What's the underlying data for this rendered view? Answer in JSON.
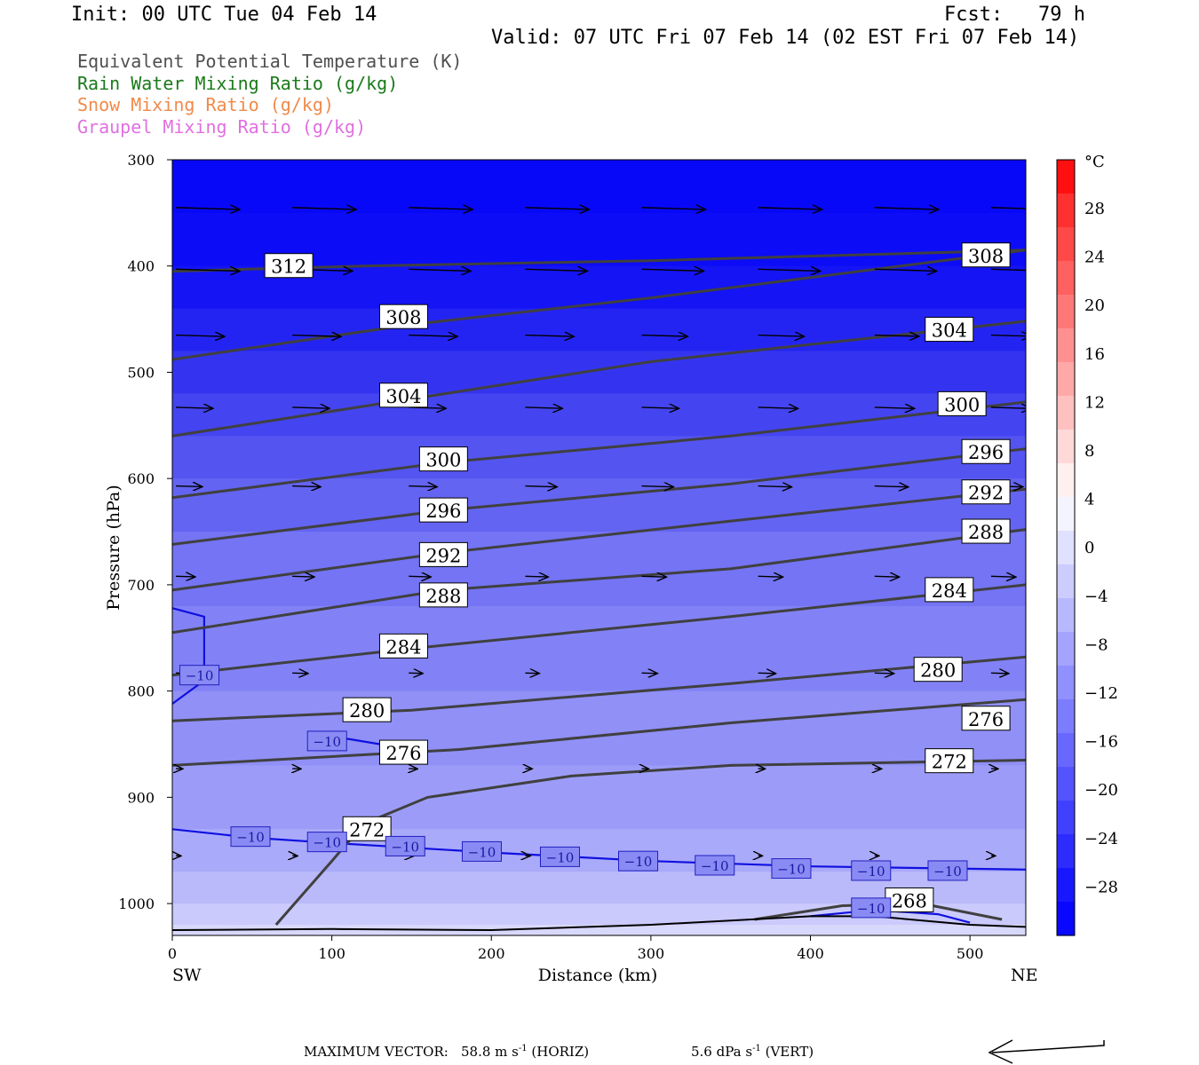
{
  "header": {
    "init": "Init: 00 UTC Tue 04 Feb 14",
    "fcst": "Fcst:   79 h",
    "valid": "Valid: 07 UTC Fri 07 Feb 14 (02 EST Fri 07 Feb 14)"
  },
  "legend": [
    {
      "label": "Equivalent Potential Temperature (K)",
      "color": "#505050"
    },
    {
      "label": "Rain Water Mixing Ratio (g/kg)",
      "color": "#1a7a1a"
    },
    {
      "label": "Snow Mixing Ratio (g/kg)",
      "color": "#f08a4b"
    },
    {
      "label": "Graupel Mixing Ratio (g/kg)",
      "color": "#e070e0"
    }
  ],
  "chart_data": {
    "type": "heatmap",
    "xlabel": "Distance (km)",
    "ylabel": "Pressure (hPa)",
    "xlim": [
      0,
      535
    ],
    "ylim": [
      1030,
      300
    ],
    "x_ticks": [
      0,
      100,
      200,
      300,
      400,
      500
    ],
    "y_ticks": [
      300,
      400,
      500,
      600,
      700,
      800,
      900,
      1000
    ],
    "x_end_labels": {
      "left": "SW",
      "right": "NE"
    },
    "colorbar": {
      "unit": "°C",
      "ticks": [
        "28",
        "24",
        "20",
        "16",
        "12",
        "8",
        "4",
        "0",
        "−4",
        "−8",
        "−12",
        "−16",
        "−20",
        "−24",
        "−28"
      ],
      "colors": [
        "#ff1010",
        "#ff3030",
        "#ff4848",
        "#ff6060",
        "#ff7878",
        "#ff9090",
        "#ffa8a8",
        "#ffc0c0",
        "#ffd8d8",
        "#fff0f0",
        "#f4f4ff",
        "#e0e0ff",
        "#ccccff",
        "#b8b8ff",
        "#a4a4ff",
        "#9090ff",
        "#7c7cff",
        "#6868ff",
        "#5454ff",
        "#4040ff",
        "#2c2cff",
        "#1818ff",
        "#0808ff"
      ]
    },
    "temperature_bands": [
      {
        "p": 300,
        "color": "#0808f8"
      },
      {
        "p": 350,
        "color": "#0c0cf6"
      },
      {
        "p": 400,
        "color": "#1414f4"
      },
      {
        "p": 440,
        "color": "#2424f2"
      },
      {
        "p": 480,
        "color": "#3434f0"
      },
      {
        "p": 520,
        "color": "#4444f0"
      },
      {
        "p": 560,
        "color": "#5454f0"
      },
      {
        "p": 600,
        "color": "#6464f2"
      },
      {
        "p": 650,
        "color": "#7474f4"
      },
      {
        "p": 720,
        "color": "#8282f6"
      },
      {
        "p": 800,
        "color": "#9090f6"
      },
      {
        "p": 870,
        "color": "#9c9cf8"
      },
      {
        "p": 930,
        "color": "#aaaafa"
      },
      {
        "p": 970,
        "color": "#babafa"
      },
      {
        "p": 1000,
        "color": "#cacafc"
      },
      {
        "p": 1020,
        "color": "#d8d8fc"
      }
    ],
    "theta_e_contours": [
      {
        "label": "312",
        "points": [
          [
            0,
            405
          ],
          [
            120,
            400
          ],
          [
            300,
            395
          ],
          [
            535,
            385
          ]
        ]
      },
      {
        "label": "308",
        "points": [
          [
            0,
            488
          ],
          [
            150,
            455
          ],
          [
            300,
            430
          ],
          [
            535,
            385
          ]
        ]
      },
      {
        "label": "304",
        "points": [
          [
            0,
            560
          ],
          [
            150,
            525
          ],
          [
            300,
            490
          ],
          [
            535,
            452
          ]
        ]
      },
      {
        "label": "300",
        "points": [
          [
            0,
            618
          ],
          [
            170,
            585
          ],
          [
            350,
            560
          ],
          [
            535,
            528
          ]
        ]
      },
      {
        "label": "296",
        "points": [
          [
            0,
            662
          ],
          [
            170,
            630
          ],
          [
            350,
            605
          ],
          [
            535,
            572
          ]
        ]
      },
      {
        "label": "292",
        "points": [
          [
            0,
            705
          ],
          [
            170,
            670
          ],
          [
            350,
            640
          ],
          [
            535,
            610
          ]
        ]
      },
      {
        "label": "288",
        "points": [
          [
            0,
            745
          ],
          [
            170,
            705
          ],
          [
            350,
            685
          ],
          [
            535,
            648
          ]
        ]
      },
      {
        "label": "284",
        "points": [
          [
            0,
            785
          ],
          [
            150,
            760
          ],
          [
            350,
            730
          ],
          [
            535,
            700
          ]
        ]
      },
      {
        "label": "280",
        "points": [
          [
            0,
            828
          ],
          [
            150,
            818
          ],
          [
            350,
            793
          ],
          [
            535,
            768
          ]
        ]
      },
      {
        "label": "276",
        "points": [
          [
            0,
            870
          ],
          [
            180,
            855
          ],
          [
            350,
            830
          ],
          [
            535,
            808
          ]
        ]
      },
      {
        "label": "272",
        "points": [
          [
            65,
            1020
          ],
          [
            100,
            960
          ],
          [
            120,
            925
          ],
          [
            160,
            900
          ],
          [
            250,
            880
          ],
          [
            350,
            870
          ],
          [
            535,
            865
          ]
        ]
      },
      {
        "label": "268",
        "points": [
          [
            365,
            1015
          ],
          [
            420,
            1002
          ],
          [
            470,
            1000
          ],
          [
            520,
            1015
          ]
        ]
      }
    ],
    "theta_e_labels": [
      {
        "label": "312",
        "x": 73,
        "p": 400
      },
      {
        "label": "308",
        "x": 145,
        "p": 448
      },
      {
        "label": "304",
        "x": 145,
        "p": 522
      },
      {
        "label": "300",
        "x": 170,
        "p": 582
      },
      {
        "label": "296",
        "x": 170,
        "p": 630
      },
      {
        "label": "292",
        "x": 170,
        "p": 672
      },
      {
        "label": "288",
        "x": 170,
        "p": 710
      },
      {
        "label": "284",
        "x": 145,
        "p": 758
      },
      {
        "label": "280",
        "x": 122,
        "p": 818
      },
      {
        "label": "276",
        "x": 145,
        "p": 858
      },
      {
        "label": "272",
        "x": 122,
        "p": 930
      },
      {
        "label": "308",
        "x": 510,
        "p": 390
      },
      {
        "label": "304",
        "x": 487,
        "p": 460
      },
      {
        "label": "300",
        "x": 495,
        "p": 530
      },
      {
        "label": "296",
        "x": 510,
        "p": 575
      },
      {
        "label": "292",
        "x": 510,
        "p": 613
      },
      {
        "label": "288",
        "x": 510,
        "p": 650
      },
      {
        "label": "284",
        "x": 487,
        "p": 705
      },
      {
        "label": "280",
        "x": 480,
        "p": 780
      },
      {
        "label": "276",
        "x": 510,
        "p": 826
      },
      {
        "label": "272",
        "x": 487,
        "p": 866
      },
      {
        "label": "268",
        "x": 462,
        "p": 997
      }
    ],
    "isotherm_minus10": [
      {
        "points": [
          [
            0,
            930
          ],
          [
            50,
            938
          ],
          [
            100,
            943
          ],
          [
            200,
            952
          ],
          [
            300,
            960
          ],
          [
            400,
            965
          ],
          [
            535,
            968
          ]
        ]
      },
      {
        "points": [
          [
            85,
            846
          ],
          [
            110,
            845
          ],
          [
            130,
            850
          ]
        ]
      },
      {
        "points": [
          [
            0,
            722
          ],
          [
            20,
            730
          ],
          [
            20,
            790
          ],
          [
            0,
            812
          ]
        ]
      },
      {
        "points": [
          [
            400,
            1012
          ],
          [
            440,
            1006
          ],
          [
            480,
            1010
          ],
          [
            500,
            1018
          ]
        ]
      }
    ],
    "isotherm_labels": [
      {
        "label": "−10",
        "x": 17,
        "p": 785
      },
      {
        "label": "−10",
        "x": 97,
        "p": 847
      },
      {
        "label": "−10",
        "x": 49,
        "p": 937
      },
      {
        "label": "−10",
        "x": 97,
        "p": 942
      },
      {
        "label": "−10",
        "x": 146,
        "p": 946
      },
      {
        "label": "−10",
        "x": 194,
        "p": 951
      },
      {
        "label": "−10",
        "x": 243,
        "p": 956
      },
      {
        "label": "−10",
        "x": 292,
        "p": 960
      },
      {
        "label": "−10",
        "x": 340,
        "p": 964
      },
      {
        "label": "−10",
        "x": 388,
        "p": 967
      },
      {
        "label": "−10",
        "x": 438,
        "p": 969
      },
      {
        "label": "−10",
        "x": 486,
        "p": 969
      },
      {
        "label": "−10",
        "x": 438,
        "p": 1004
      }
    ],
    "wind_rows": [
      {
        "p": 345,
        "vectors": [
          [
            0,
            72
          ],
          [
            73,
            72
          ],
          [
            146,
            72
          ],
          [
            219,
            72
          ],
          [
            292,
            72
          ],
          [
            365,
            72
          ],
          [
            438,
            72
          ],
          [
            511,
            72
          ]
        ]
      },
      {
        "p": 403,
        "vectors": [
          [
            0,
            72
          ],
          [
            73,
            68
          ],
          [
            146,
            70
          ],
          [
            219,
            70
          ],
          [
            292,
            70
          ],
          [
            365,
            70
          ],
          [
            438,
            70
          ],
          [
            511,
            70
          ]
        ]
      },
      {
        "p": 465,
        "vectors": [
          [
            0,
            55
          ],
          [
            73,
            55
          ],
          [
            146,
            55
          ],
          [
            219,
            55
          ],
          [
            292,
            52
          ],
          [
            365,
            52
          ],
          [
            438,
            50
          ],
          [
            511,
            45
          ]
        ]
      },
      {
        "p": 533,
        "vectors": [
          [
            0,
            42
          ],
          [
            73,
            42
          ],
          [
            146,
            42
          ],
          [
            219,
            42
          ],
          [
            292,
            42
          ],
          [
            365,
            45
          ],
          [
            438,
            45
          ],
          [
            511,
            45
          ]
        ]
      },
      {
        "p": 607,
        "vectors": [
          [
            0,
            30
          ],
          [
            73,
            32
          ],
          [
            146,
            32
          ],
          [
            219,
            36
          ],
          [
            292,
            36
          ],
          [
            365,
            38
          ],
          [
            438,
            38
          ],
          [
            511,
            36
          ]
        ]
      },
      {
        "p": 692,
        "vectors": [
          [
            0,
            22
          ],
          [
            73,
            25
          ],
          [
            146,
            25
          ],
          [
            219,
            26
          ],
          [
            292,
            28
          ],
          [
            365,
            28
          ],
          [
            438,
            28
          ],
          [
            511,
            28
          ]
        ]
      },
      {
        "p": 783,
        "vectors": [
          [
            0,
            20
          ],
          [
            73,
            18
          ],
          [
            146,
            16
          ],
          [
            219,
            16
          ],
          [
            292,
            18
          ],
          [
            365,
            20
          ],
          [
            438,
            22
          ],
          [
            511,
            20
          ]
        ]
      },
      {
        "p": 873,
        "vectors": [
          [
            0,
            8
          ],
          [
            73,
            10
          ],
          [
            146,
            10
          ],
          [
            219,
            8
          ],
          [
            292,
            8
          ],
          [
            365,
            8
          ],
          [
            438,
            8
          ],
          [
            511,
            8
          ]
        ]
      },
      {
        "p": 955,
        "vectors": [
          [
            0,
            6
          ],
          [
            73,
            6
          ],
          [
            146,
            6
          ],
          [
            219,
            6
          ],
          [
            292,
            6
          ],
          [
            365,
            5
          ],
          [
            438,
            5
          ],
          [
            511,
            5
          ]
        ]
      }
    ],
    "surface_line": [
      [
        0,
        1025
      ],
      [
        100,
        1024
      ],
      [
        200,
        1025
      ],
      [
        300,
        1020
      ],
      [
        400,
        1012
      ],
      [
        440,
        1012
      ],
      [
        500,
        1020
      ],
      [
        535,
        1022
      ]
    ]
  },
  "footer": {
    "max_vector_label": "MAXIMUM VECTOR:",
    "horiz": "58.8 m s",
    "horiz_unit": "(HORIZ)",
    "vert": "5.6 dPa s",
    "vert_unit": "(VERT)",
    "exponent": "-1"
  }
}
